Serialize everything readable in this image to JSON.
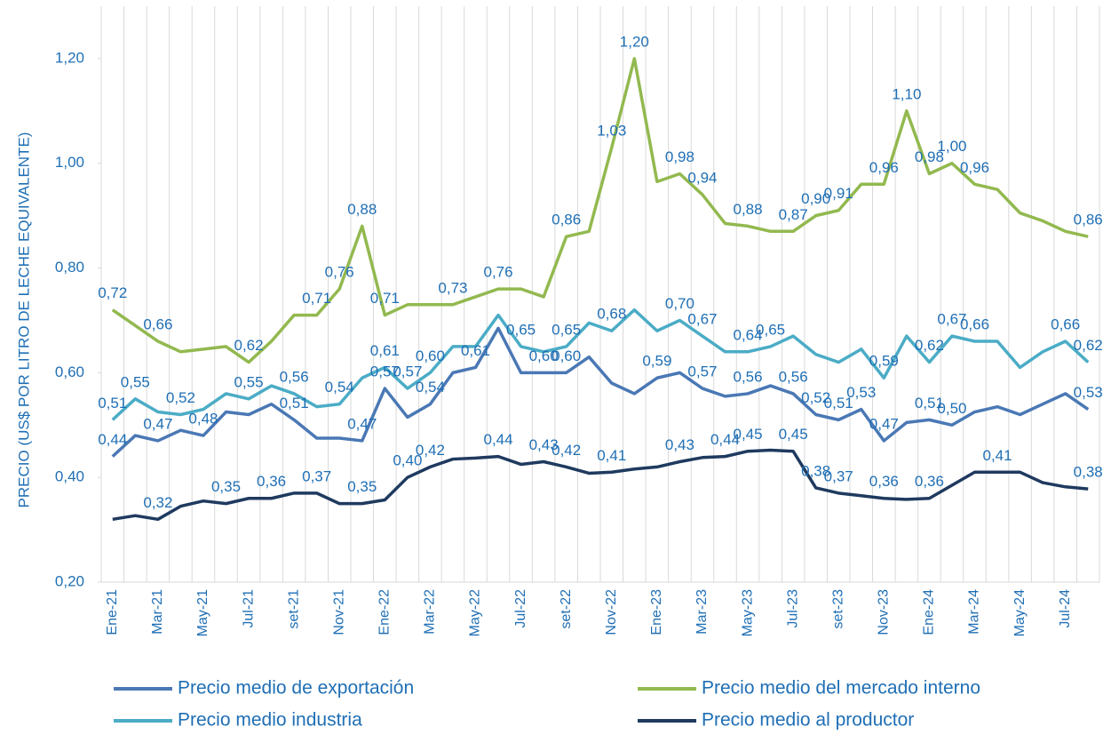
{
  "chart_data": {
    "type": "line",
    "y_label": "PRECIO (US$ POR LITRO DE LECHE EQUIVALENTE)",
    "categories": [
      "Ene-21",
      null,
      "Mar-21",
      null,
      "May-21",
      null,
      "Jul-21",
      null,
      "set-21",
      null,
      "Nov-21",
      null,
      "Ene-22",
      null,
      "Mar-22",
      null,
      "May-22",
      null,
      "Jul-22",
      null,
      "set-22",
      null,
      "Nov-22",
      null,
      "Ene-23",
      null,
      "Mar-23",
      null,
      "May-23",
      null,
      "Jul-23",
      null,
      "set-23",
      null,
      "Nov-23",
      null,
      "Ene-24",
      null,
      "Mar-24",
      null,
      "May-24",
      null,
      "Jul-24",
      null
    ],
    "ylim": [
      0.2,
      1.3
    ],
    "yticks": [
      {
        "value": 0.2,
        "label": "0,20"
      },
      {
        "value": 0.4,
        "label": "0,40"
      },
      {
        "value": 0.6,
        "label": "0,60"
      },
      {
        "value": 0.8,
        "label": "0,80"
      },
      {
        "value": 1.0,
        "label": "1,00"
      },
      {
        "value": 1.2,
        "label": "1,20"
      }
    ],
    "grid": "vertical",
    "legend": "bottom",
    "series": [
      {
        "name": "Precio medio de exportación",
        "color": "#4a78b5",
        "values": [
          0.44,
          0.48,
          0.47,
          0.49,
          0.48,
          0.525,
          0.52,
          0.54,
          0.51,
          0.475,
          0.475,
          0.47,
          0.57,
          0.515,
          0.54,
          0.6,
          0.61,
          0.685,
          0.6,
          0.6,
          0.6,
          0.63,
          0.58,
          0.56,
          0.59,
          0.6,
          0.57,
          0.555,
          0.56,
          0.575,
          0.56,
          0.52,
          0.51,
          0.53,
          0.47,
          0.505,
          0.51,
          0.5,
          0.525,
          0.535,
          0.52,
          0.54,
          0.56,
          0.53
        ],
        "value_labels": [
          "0,44",
          null,
          "0,47",
          null,
          "0,48",
          null,
          null,
          null,
          "0,51",
          null,
          null,
          "0,47",
          "0,57",
          null,
          "0,54",
          null,
          "0,61",
          null,
          null,
          "0,60",
          "0,60",
          null,
          null,
          null,
          "0,59",
          null,
          "0,57",
          null,
          "0,56",
          null,
          "0,56",
          "0,52",
          "0,51",
          "0,53",
          "0,47",
          null,
          "0,51",
          "0,50",
          null,
          null,
          null,
          null,
          null,
          "0,53"
        ]
      },
      {
        "name": "Precio medio del mercado interno",
        "color": "#92b94f",
        "values": [
          0.72,
          0.69,
          0.66,
          0.64,
          0.645,
          0.65,
          0.62,
          0.66,
          0.71,
          0.71,
          0.76,
          0.88,
          0.71,
          0.73,
          0.73,
          0.73,
          0.745,
          0.76,
          0.76,
          0.745,
          0.86,
          0.87,
          1.03,
          1.2,
          0.965,
          0.98,
          0.94,
          0.885,
          0.88,
          0.87,
          0.87,
          0.9,
          0.91,
          0.96,
          0.96,
          1.1,
          0.98,
          1.0,
          0.96,
          0.95,
          0.905,
          0.89,
          0.87,
          0.86
        ],
        "value_labels": [
          "0,72",
          null,
          "0,66",
          null,
          null,
          null,
          "0,62",
          null,
          null,
          "0,71",
          "0,76",
          "0,88",
          "0,71",
          null,
          null,
          "0,73",
          null,
          "0,76",
          null,
          null,
          "0,86",
          null,
          "1,03",
          "1,20",
          null,
          "0,98",
          "0,94",
          null,
          "0,88",
          null,
          "0,87",
          "0,90",
          "0,91",
          null,
          "0,96",
          "1,10",
          "0,98",
          "1,00",
          "0,96",
          null,
          null,
          null,
          null,
          "0,86"
        ]
      },
      {
        "name": "Precio medio industria",
        "color": "#4bacc6",
        "values": [
          0.51,
          0.55,
          0.525,
          0.52,
          0.53,
          0.56,
          0.55,
          0.575,
          0.56,
          0.535,
          0.54,
          0.59,
          0.61,
          0.57,
          0.6,
          0.65,
          0.65,
          0.71,
          0.65,
          0.64,
          0.65,
          0.695,
          0.68,
          0.72,
          0.68,
          0.7,
          0.67,
          0.64,
          0.64,
          0.65,
          0.67,
          0.635,
          0.62,
          0.645,
          0.59,
          0.67,
          0.62,
          0.67,
          0.66,
          0.66,
          0.61,
          0.64,
          0.66,
          0.62
        ],
        "value_labels": [
          "0,51",
          "0,55",
          null,
          "0,52",
          null,
          null,
          "0,55",
          null,
          "0,56",
          null,
          "0,54",
          null,
          "0,61",
          "0,57",
          "0,60",
          null,
          null,
          null,
          "0,65",
          null,
          "0,65",
          null,
          "0,68",
          null,
          null,
          "0,70",
          "0,67",
          null,
          "0,64",
          "0,65",
          null,
          null,
          null,
          null,
          "0,59",
          null,
          "0,62",
          "0,67",
          "0,66",
          null,
          null,
          null,
          "0,66",
          "0,62"
        ]
      },
      {
        "name": "Precio medio al productor",
        "color": "#1f3a5f",
        "values": [
          0.32,
          0.327,
          0.32,
          0.345,
          0.355,
          0.35,
          0.36,
          0.36,
          0.37,
          0.37,
          0.35,
          0.35,
          0.357,
          0.4,
          0.42,
          0.435,
          0.437,
          0.44,
          0.425,
          0.43,
          0.42,
          0.408,
          0.41,
          0.416,
          0.42,
          0.43,
          0.438,
          0.44,
          0.45,
          0.452,
          0.45,
          0.38,
          0.37,
          0.365,
          0.36,
          0.358,
          0.36,
          0.385,
          0.41,
          0.41,
          0.41,
          0.39,
          0.382,
          0.378
        ],
        "value_labels": [
          null,
          null,
          "0,32",
          null,
          null,
          "0,35",
          null,
          "0,36",
          null,
          "0,37",
          null,
          "0,35",
          null,
          "0,40",
          "0,42",
          null,
          null,
          "0,44",
          null,
          "0,43",
          "0,42",
          null,
          "0,41",
          null,
          null,
          "0,43",
          null,
          "0,44",
          "0,45",
          null,
          "0,45",
          "0,38",
          "0,37",
          null,
          "0,36",
          null,
          "0,36",
          null,
          null,
          "0,41",
          null,
          null,
          null,
          "0,38"
        ]
      }
    ]
  }
}
